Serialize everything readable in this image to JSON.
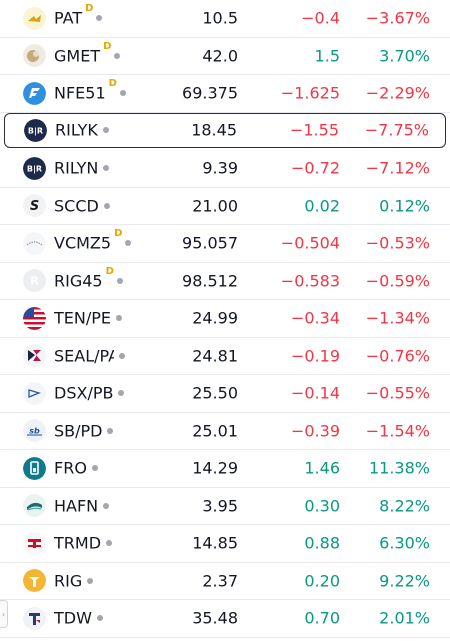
{
  "rows": [
    {
      "symbol": "PAT",
      "badge": "D",
      "last": "10.5",
      "change": "−0.4",
      "percent": "−3.67%",
      "dir": "neg",
      "icon": "pat-logo-icon",
      "icon_color": "#f5e08a"
    },
    {
      "symbol": "GMET",
      "badge": "D",
      "last": "42.0",
      "change": "1.5",
      "percent": "3.70%",
      "dir": "pos",
      "icon": "gmet-logo-icon",
      "icon_color": "#c7a97a"
    },
    {
      "symbol": "NFE51",
      "badge": "D",
      "last": "69.375",
      "change": "−1.625",
      "percent": "−2.29%",
      "dir": "neg",
      "icon": "nfe-logo-icon",
      "icon_color": "#2f8fe0"
    },
    {
      "symbol": "RILYK",
      "badge": "",
      "last": "18.45",
      "change": "−1.55",
      "percent": "−7.75%",
      "dir": "neg",
      "icon": "brily-logo-icon",
      "icon_color": "#1e2a4a",
      "selected": true
    },
    {
      "symbol": "RILYN",
      "badge": "",
      "last": "9.39",
      "change": "−0.72",
      "percent": "−7.12%",
      "dir": "neg",
      "icon": "brily-logo-icon",
      "icon_color": "#1e2a4a"
    },
    {
      "symbol": "SCCD",
      "badge": "",
      "last": "21.00",
      "change": "0.02",
      "percent": "0.12%",
      "dir": "pos",
      "icon": "sccd-logo-icon",
      "icon_color": "#1a1a1a"
    },
    {
      "symbol": "VCMZ5",
      "badge": "D",
      "last": "95.057",
      "change": "−0.504",
      "percent": "−0.53%",
      "dir": "neg",
      "icon": "vcmz-logo-icon",
      "icon_color": "#9aa3ad"
    },
    {
      "symbol": "RIG45",
      "badge": "D",
      "last": "98.512",
      "change": "−0.583",
      "percent": "−0.59%",
      "dir": "neg",
      "icon": "rig-generic-logo-icon",
      "icon_color": "#d5d7dc"
    },
    {
      "symbol": "TEN/PE",
      "badge": "",
      "last": "24.99",
      "change": "−0.34",
      "percent": "−1.34%",
      "dir": "neg",
      "icon": "us-flag-logo-icon",
      "icon_color": "#c8102e"
    },
    {
      "symbol": "SEAL/PA",
      "badge": "",
      "last": "24.81",
      "change": "−0.19",
      "percent": "−0.76%",
      "dir": "neg",
      "icon": "seal-logo-icon",
      "icon_color": "#b3164a"
    },
    {
      "symbol": "DSX/PB",
      "badge": "",
      "last": "25.50",
      "change": "−0.14",
      "percent": "−0.55%",
      "dir": "neg",
      "icon": "dsx-logo-icon",
      "icon_color": "#2a5ca8"
    },
    {
      "symbol": "SB/PD",
      "badge": "",
      "last": "25.01",
      "change": "−0.39",
      "percent": "−1.54%",
      "dir": "neg",
      "icon": "sb-logo-icon",
      "icon_color": "#1f4f9a"
    },
    {
      "symbol": "FRO",
      "badge": "",
      "last": "14.29",
      "change": "1.46",
      "percent": "11.38%",
      "dir": "pos",
      "icon": "fro-logo-icon",
      "icon_color": "#0f7a8a"
    },
    {
      "symbol": "HAFN",
      "badge": "",
      "last": "3.95",
      "change": "0.30",
      "percent": "8.22%",
      "dir": "pos",
      "icon": "hafn-logo-icon",
      "icon_color": "#1d6b6e"
    },
    {
      "symbol": "TRMD",
      "badge": "",
      "last": "14.85",
      "change": "0.88",
      "percent": "6.30%",
      "dir": "pos",
      "icon": "trmd-logo-icon",
      "icon_color": "#c8102e"
    },
    {
      "symbol": "RIG",
      "badge": "",
      "last": "2.37",
      "change": "0.20",
      "percent": "9.22%",
      "dir": "pos",
      "icon": "rig-logo-icon",
      "icon_color": "#f2b632"
    },
    {
      "symbol": "TDW",
      "badge": "",
      "last": "35.48",
      "change": "0.70",
      "percent": "2.01%",
      "dir": "pos",
      "icon": "tdw-logo-icon",
      "icon_color": "#2b3a67"
    }
  ],
  "colors": {
    "negative": "#f23645",
    "positive": "#089981",
    "badge": "#e8a700"
  },
  "handle_glyph": "›"
}
